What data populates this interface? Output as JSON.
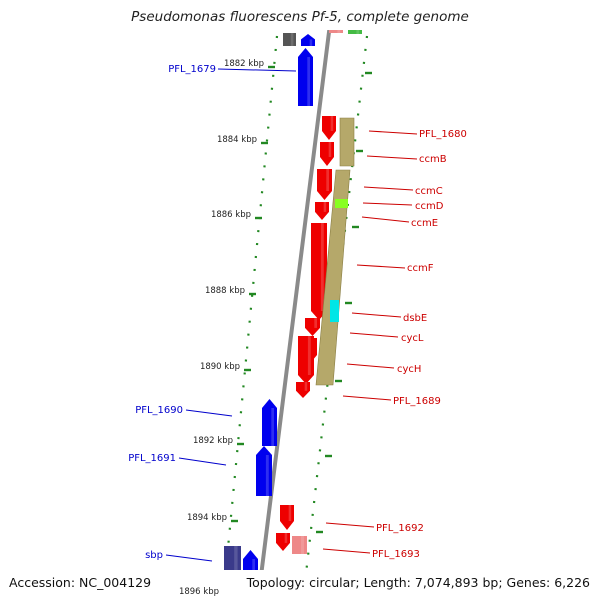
{
  "title": "Pseudomonas fluorescens Pf-5, complete genome",
  "footer": {
    "accession": "Accession: NC_004129",
    "summary": "Topology: circular; Length: 7,074,893 bp; Genes: 6,226"
  },
  "colors": {
    "forward_gene": "#ee0000",
    "reverse_gene": "#0000ee",
    "light_red_gene": "#ee8888",
    "gray_gene": "#555555",
    "navy_gene": "#3a3a8a",
    "operon_band": "#b5a86a",
    "green_feature": "#88ff22",
    "cyan_feature": "#00e6e6",
    "tick": "#228822",
    "backbone": "#8a8a8a"
  },
  "scale": {
    "unit": "kbp",
    "ticks": [
      {
        "label": "1882 kbp",
        "kbp": 1882
      },
      {
        "label": "1884 kbp",
        "kbp": 1884
      },
      {
        "label": "1886 kbp",
        "kbp": 1886
      },
      {
        "label": "1888 kbp",
        "kbp": 1888
      },
      {
        "label": "1890 kbp",
        "kbp": 1890
      },
      {
        "label": "1892 kbp",
        "kbp": 1892
      },
      {
        "label": "1894 kbp",
        "kbp": 1894
      },
      {
        "label": "1896 kbp",
        "kbp": 1896
      }
    ]
  },
  "gene_labels": [
    {
      "name": "PFL_1679",
      "strand": "reverse"
    },
    {
      "name": "PFL_1680",
      "strand": "forward"
    },
    {
      "name": "ccmB",
      "strand": "forward"
    },
    {
      "name": "ccmC",
      "strand": "forward"
    },
    {
      "name": "ccmD",
      "strand": "forward"
    },
    {
      "name": "ccmE",
      "strand": "forward"
    },
    {
      "name": "ccmF",
      "strand": "forward"
    },
    {
      "name": "dsbE",
      "strand": "forward"
    },
    {
      "name": "cycL",
      "strand": "forward"
    },
    {
      "name": "cycH",
      "strand": "forward"
    },
    {
      "name": "PFL_1689",
      "strand": "forward"
    },
    {
      "name": "PFL_1690",
      "strand": "reverse"
    },
    {
      "name": "PFL_1691",
      "strand": "reverse"
    },
    {
      "name": "PFL_1692",
      "strand": "forward"
    },
    {
      "name": "PFL_1693",
      "strand": "forward"
    },
    {
      "name": "sbp",
      "strand": "reverse"
    }
  ]
}
